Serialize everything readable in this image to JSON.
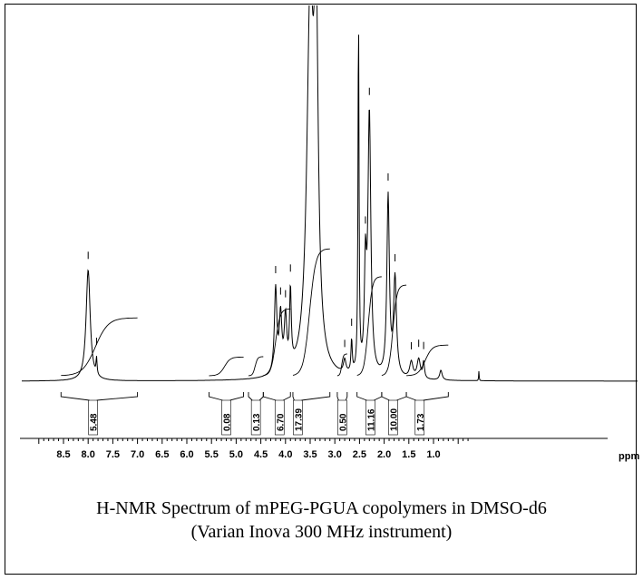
{
  "chart_data": {
    "type": "line",
    "title": "",
    "xlabel": "ppm",
    "xlim": [
      9.0,
      0.0
    ],
    "x_reversed": true,
    "ticks": [
      "8.5",
      "8.0",
      "7.5",
      "7.0",
      "6.5",
      "6.0",
      "5.5",
      "5.0",
      "4.5",
      "4.0",
      "3.5",
      "3.0",
      "2.5",
      "2.0",
      "1.5",
      "1.0"
    ],
    "peaks": [
      {
        "ppm": 8.0,
        "height": 0.34,
        "width": 0.05
      },
      {
        "ppm": 7.83,
        "height": 0.05,
        "width": 0.012
      },
      {
        "ppm": 4.2,
        "height": 0.26,
        "width": 0.03
      },
      {
        "ppm": 4.1,
        "height": 0.17,
        "width": 0.03
      },
      {
        "ppm": 4.0,
        "height": 0.16,
        "width": 0.03
      },
      {
        "ppm": 3.9,
        "height": 0.23,
        "width": 0.02
      },
      {
        "ppm": 3.5,
        "height": 1.1,
        "width": 0.08
      },
      {
        "ppm": 3.38,
        "height": 1.0,
        "width": 0.05
      },
      {
        "ppm": 2.8,
        "height": 0.04,
        "width": 0.03
      },
      {
        "ppm": 2.66,
        "height": 0.1,
        "width": 0.015
      },
      {
        "ppm": 2.52,
        "height": 1.1,
        "width": 0.012
      },
      {
        "ppm": 2.38,
        "height": 0.3,
        "width": 0.025
      },
      {
        "ppm": 2.3,
        "height": 0.8,
        "width": 0.035
      },
      {
        "ppm": 1.92,
        "height": 0.55,
        "width": 0.03
      },
      {
        "ppm": 1.78,
        "height": 0.3,
        "width": 0.035
      },
      {
        "ppm": 1.45,
        "height": 0.05,
        "width": 0.04
      },
      {
        "ppm": 1.3,
        "height": 0.06,
        "width": 0.04
      },
      {
        "ppm": 1.2,
        "height": 0.05,
        "width": 0.02
      },
      {
        "ppm": 0.85,
        "height": 0.03,
        "width": 0.03
      },
      {
        "ppm": 0.08,
        "height": 0.03,
        "width": 0.006
      }
    ],
    "integrals": [
      {
        "from": 8.55,
        "to": 7.0,
        "label_ppm": 7.9,
        "value": "5.48"
      },
      {
        "from": 5.55,
        "to": 4.85,
        "label_ppm": 5.2,
        "value": "0.08"
      },
      {
        "from": 4.75,
        "to": 4.45,
        "label_ppm": 4.6,
        "value": "0.13"
      },
      {
        "from": 4.45,
        "to": 3.9,
        "label_ppm": 4.12,
        "value": "6.70"
      },
      {
        "from": 3.85,
        "to": 3.1,
        "label_ppm": 3.75,
        "value": "17.39"
      },
      {
        "from": 2.95,
        "to": 2.75,
        "label_ppm": 2.85,
        "value": "0.50"
      },
      {
        "from": 2.55,
        "to": 2.05,
        "label_ppm": 2.28,
        "value": "11.16"
      },
      {
        "from": 2.05,
        "to": 1.55,
        "label_ppm": 1.82,
        "value": "10.00"
      },
      {
        "from": 1.55,
        "to": 0.7,
        "label_ppm": 1.28,
        "value": "1.73"
      }
    ]
  },
  "caption": {
    "line1": "H-NMR Spectrum of mPEG-PGUA copolymers in DMSO-d6",
    "line2": "(Varian Inova 300 MHz instrument)"
  },
  "colors": {
    "ink": "#000000",
    "background": "#ffffff"
  }
}
